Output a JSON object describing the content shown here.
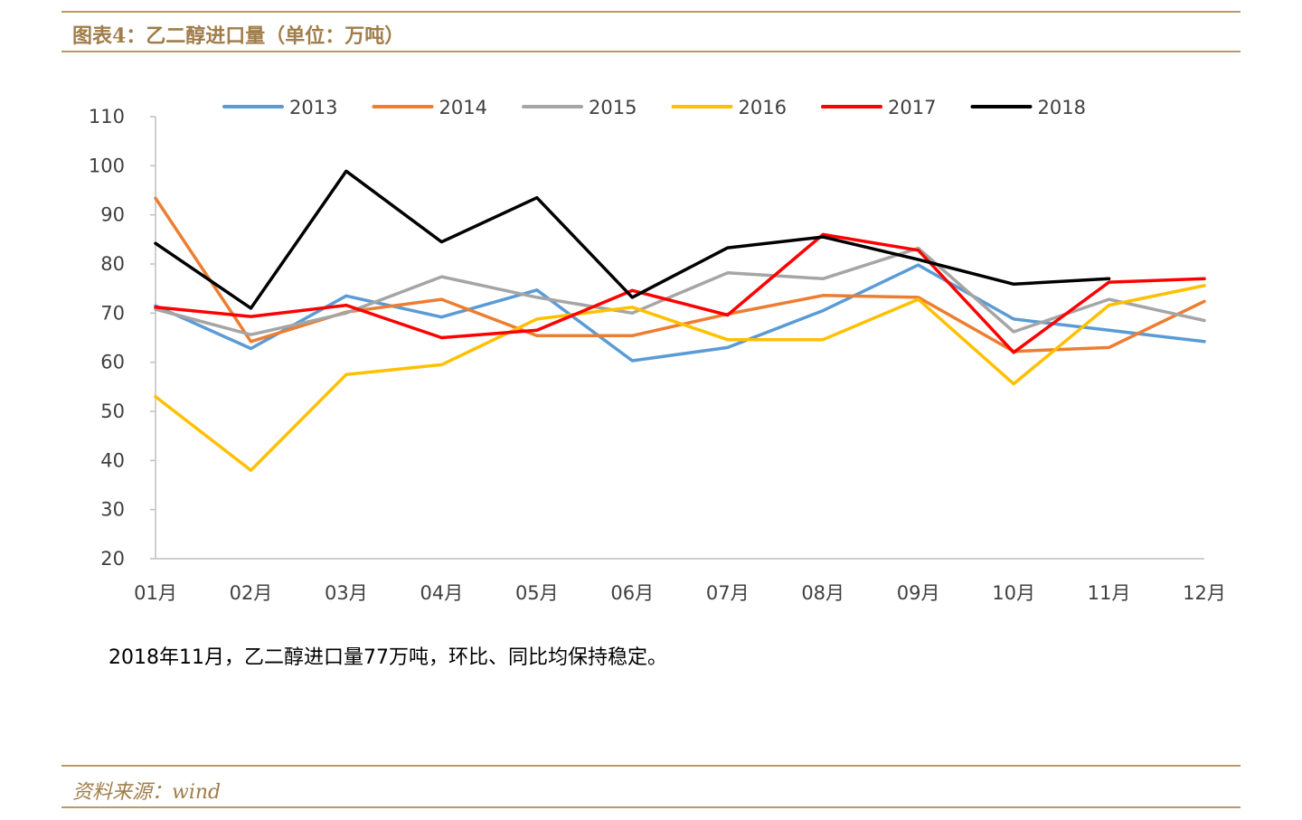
{
  "header": {
    "title": "图表4：乙二醇进口量（单位：万吨）"
  },
  "description": "2018年11月，乙二醇进口量77万吨，环比、同比均保持稳定。",
  "footer": {
    "source": "资料来源：wind"
  },
  "colors": {
    "accent": "#a07d4a",
    "rule": "#b8996b",
    "axis": "#bfbfbf"
  },
  "chart_data": {
    "type": "line",
    "title": "",
    "xlabel": "",
    "ylabel": "",
    "ylim": [
      20,
      110
    ],
    "yticks": [
      20,
      30,
      40,
      50,
      60,
      70,
      80,
      90,
      100,
      110
    ],
    "grid": false,
    "legend_position": "top",
    "categories": [
      "01月",
      "02月",
      "03月",
      "04月",
      "05月",
      "06月",
      "07月",
      "08月",
      "09月",
      "10月",
      "11月",
      "12月"
    ],
    "series": [
      {
        "name": "2013",
        "color": "#5b9bd5",
        "values": [
          71.5,
          62.8,
          73.5,
          69.2,
          74.7,
          60.3,
          63.0,
          70.5,
          79.8,
          68.8,
          66.5,
          64.2
        ]
      },
      {
        "name": "2014",
        "color": "#ed7d31",
        "values": [
          93.4,
          64.2,
          70.2,
          72.8,
          65.4,
          65.4,
          69.8,
          73.6,
          73.2,
          62.2,
          63.0,
          72.4
        ]
      },
      {
        "name": "2015",
        "color": "#a5a5a5",
        "values": [
          70.8,
          65.6,
          70.0,
          77.4,
          73.2,
          70.0,
          78.2,
          77.0,
          83.2,
          66.2,
          72.8,
          68.5
        ]
      },
      {
        "name": "2016",
        "color": "#ffc000",
        "values": [
          53.0,
          38.0,
          57.5,
          59.5,
          68.8,
          71.2,
          64.6,
          64.6,
          72.8,
          55.6,
          71.6,
          75.6
        ]
      },
      {
        "name": "2017",
        "color": "#ff0000",
        "values": [
          71.2,
          69.3,
          71.6,
          65.0,
          66.5,
          74.6,
          69.6,
          86.0,
          82.8,
          62.0,
          76.3,
          77.0
        ]
      },
      {
        "name": "2018",
        "color": "#000000",
        "values": [
          84.2,
          71.0,
          98.9,
          84.5,
          93.5,
          73.2,
          83.3,
          85.5,
          80.9,
          75.9,
          77.0,
          null
        ]
      }
    ]
  }
}
